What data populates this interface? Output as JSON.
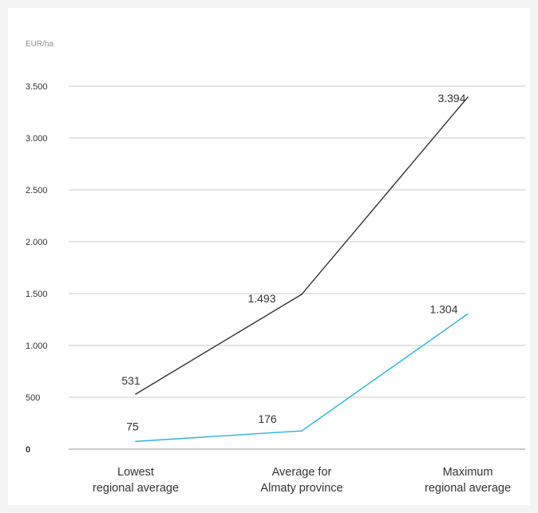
{
  "chart_data": {
    "type": "line",
    "title": "",
    "xlabel": "",
    "ylabel": "EUR/ha",
    "unit": "EUR/ha",
    "categories": [
      [
        "Lowest",
        "regional average"
      ],
      [
        "Average for",
        "Almaty province"
      ],
      [
        "Maximum",
        "regional average"
      ]
    ],
    "series": [
      {
        "name": "",
        "color": "#333333",
        "values": [
          531,
          1493,
          3394
        ],
        "labels": [
          "531",
          "1.493",
          "3.394"
        ]
      },
      {
        "name": "",
        "color": "#2ab3e0",
        "values": [
          75,
          176,
          1304
        ],
        "labels": [
          "75",
          "176",
          "1.304"
        ]
      }
    ],
    "yticks": [
      0,
      500,
      1000,
      1500,
      2000,
      2500,
      3000,
      3500
    ],
    "ytick_labels": [
      "0",
      "500",
      "1.000",
      "1.500",
      "2.000",
      "2.500",
      "3.000",
      "3.500"
    ],
    "ylim": [
      0,
      3500
    ],
    "grid": "horizontal",
    "legend": "none"
  }
}
